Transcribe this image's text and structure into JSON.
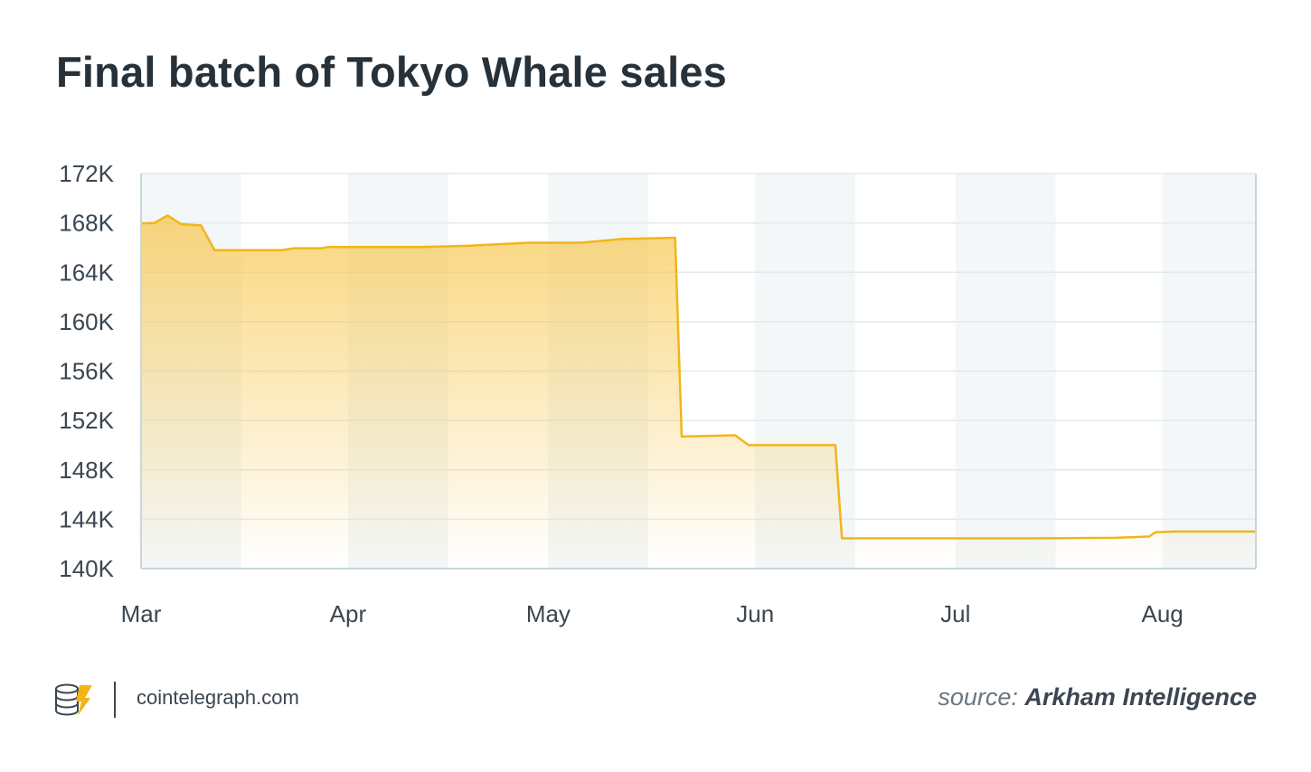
{
  "title": "Final batch of Tokyo Whale sales",
  "footer": {
    "logo_icon": "cointelegraph-logo-icon",
    "site": "cointelegraph.com",
    "source_prefix": "source:",
    "source_name": "Arkham Intelligence"
  },
  "colors": {
    "line": "#F3B418",
    "fill": "#F8C64A",
    "band": "#F3F7F8",
    "grid": "#E3E9EC",
    "text": "#26313A"
  },
  "chart_data": {
    "type": "area",
    "title": "Final batch of Tokyo Whale sales",
    "xlabel": "",
    "ylabel": "",
    "x_ticks": [
      "Mar",
      "Apr",
      "May",
      "Jun",
      "Jul",
      "Aug"
    ],
    "y_ticks": [
      "172K",
      "168K",
      "164K",
      "160K",
      "156K",
      "152K",
      "148K",
      "144K",
      "140K"
    ],
    "ylim": [
      140000,
      172000
    ],
    "xlim": [
      "2024-03-01",
      "2024-08-15"
    ],
    "grid": true,
    "series": [
      {
        "points": [
          [
            "2024-03-01",
            167950
          ],
          [
            "2024-03-03",
            168000
          ],
          [
            "2024-03-05",
            168600
          ],
          [
            "2024-03-07",
            167900
          ],
          [
            "2024-03-10",
            167800
          ],
          [
            "2024-03-12",
            165800
          ],
          [
            "2024-03-22",
            165800
          ],
          [
            "2024-03-24",
            165950
          ],
          [
            "2024-03-28",
            165950
          ],
          [
            "2024-03-29",
            166050
          ],
          [
            "2024-04-12",
            166050
          ],
          [
            "2024-04-19",
            166150
          ],
          [
            "2024-04-28",
            166400
          ],
          [
            "2024-05-06",
            166400
          ],
          [
            "2024-05-12",
            166700
          ],
          [
            "2024-05-20",
            166800
          ],
          [
            "2024-05-21",
            150700
          ],
          [
            "2024-05-29",
            150800
          ],
          [
            "2024-05-31",
            150000
          ],
          [
            "2024-06-13",
            150000
          ],
          [
            "2024-06-14",
            142450
          ],
          [
            "2024-07-12",
            142450
          ],
          [
            "2024-07-25",
            142500
          ],
          [
            "2024-07-30",
            142600
          ],
          [
            "2024-07-31",
            142950
          ],
          [
            "2024-08-03",
            143000
          ],
          [
            "2024-08-15",
            143000
          ]
        ]
      }
    ]
  }
}
